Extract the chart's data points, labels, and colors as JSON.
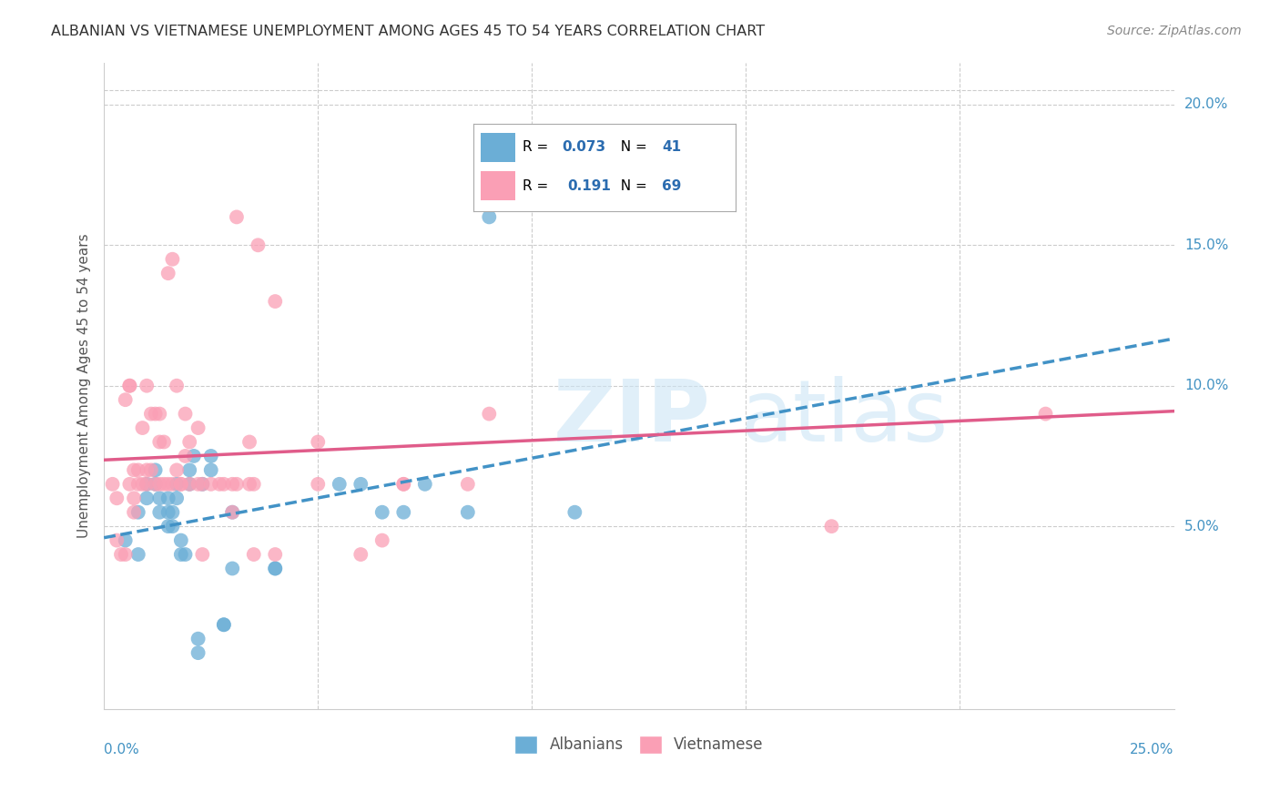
{
  "title": "ALBANIAN VS VIETNAMESE UNEMPLOYMENT AMONG AGES 45 TO 54 YEARS CORRELATION CHART",
  "source": "Source: ZipAtlas.com",
  "ylabel": "Unemployment Among Ages 45 to 54 years",
  "ytick_labels": [
    "5.0%",
    "10.0%",
    "15.0%",
    "20.0%"
  ],
  "ytick_values": [
    0.05,
    0.1,
    0.15,
    0.2
  ],
  "xlim": [
    0.0,
    0.25
  ],
  "ylim": [
    -0.015,
    0.215
  ],
  "legend_albanian_R": "0.073",
  "legend_albanian_N": "41",
  "legend_vietnamese_R": "0.191",
  "legend_vietnamese_N": "69",
  "color_albanian": "#6baed6",
  "color_vietnamese": "#fa9fb5",
  "color_albanian_line": "#4292c6",
  "color_vietnamese_line": "#e05c8a",
  "color_axis_labels": "#4393c3",
  "albanian_x": [
    0.005,
    0.008,
    0.008,
    0.01,
    0.01,
    0.012,
    0.012,
    0.013,
    0.013,
    0.015,
    0.015,
    0.015,
    0.016,
    0.016,
    0.017,
    0.017,
    0.018,
    0.018,
    0.019,
    0.02,
    0.02,
    0.021,
    0.022,
    0.022,
    0.023,
    0.025,
    0.025,
    0.028,
    0.028,
    0.03,
    0.03,
    0.04,
    0.04,
    0.055,
    0.06,
    0.065,
    0.07,
    0.075,
    0.085,
    0.09,
    0.11
  ],
  "albanian_y": [
    0.045,
    0.04,
    0.055,
    0.06,
    0.065,
    0.065,
    0.07,
    0.055,
    0.06,
    0.05,
    0.055,
    0.06,
    0.05,
    0.055,
    0.06,
    0.065,
    0.04,
    0.045,
    0.04,
    0.065,
    0.07,
    0.075,
    0.005,
    0.01,
    0.065,
    0.07,
    0.075,
    0.015,
    0.015,
    0.035,
    0.055,
    0.035,
    0.035,
    0.065,
    0.065,
    0.055,
    0.055,
    0.065,
    0.055,
    0.16,
    0.055
  ],
  "vietnamese_x": [
    0.002,
    0.003,
    0.003,
    0.004,
    0.005,
    0.005,
    0.006,
    0.006,
    0.006,
    0.007,
    0.007,
    0.007,
    0.008,
    0.008,
    0.009,
    0.009,
    0.01,
    0.01,
    0.01,
    0.011,
    0.011,
    0.012,
    0.012,
    0.013,
    0.013,
    0.013,
    0.014,
    0.014,
    0.015,
    0.015,
    0.016,
    0.016,
    0.017,
    0.017,
    0.018,
    0.018,
    0.019,
    0.019,
    0.02,
    0.02,
    0.022,
    0.022,
    0.023,
    0.023,
    0.025,
    0.027,
    0.028,
    0.03,
    0.03,
    0.031,
    0.031,
    0.034,
    0.034,
    0.035,
    0.035,
    0.036,
    0.04,
    0.04,
    0.05,
    0.05,
    0.06,
    0.065,
    0.07,
    0.07,
    0.085,
    0.09,
    0.12,
    0.17,
    0.22
  ],
  "vietnamese_y": [
    0.065,
    0.045,
    0.06,
    0.04,
    0.04,
    0.095,
    0.1,
    0.1,
    0.065,
    0.055,
    0.06,
    0.07,
    0.065,
    0.07,
    0.065,
    0.085,
    0.065,
    0.07,
    0.1,
    0.07,
    0.09,
    0.065,
    0.09,
    0.065,
    0.08,
    0.09,
    0.065,
    0.08,
    0.065,
    0.14,
    0.065,
    0.145,
    0.07,
    0.1,
    0.065,
    0.065,
    0.075,
    0.09,
    0.065,
    0.08,
    0.065,
    0.085,
    0.065,
    0.04,
    0.065,
    0.065,
    0.065,
    0.065,
    0.055,
    0.16,
    0.065,
    0.08,
    0.065,
    0.04,
    0.065,
    0.15,
    0.04,
    0.13,
    0.065,
    0.08,
    0.04,
    0.045,
    0.065,
    0.065,
    0.065,
    0.09,
    0.165,
    0.05,
    0.09
  ]
}
